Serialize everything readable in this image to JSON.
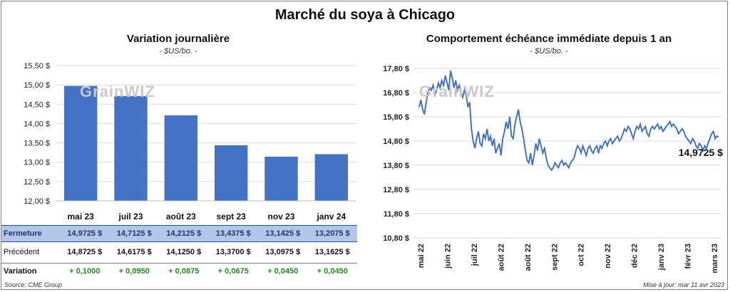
{
  "title": "Marché du soya à Chicago",
  "left_chart": {
    "title": "Variation journalière",
    "unit": "- $US/bo. -",
    "watermark": "GrainWIZ"
  },
  "right_chart": {
    "title": "Comportement échéance immédiate depuis 1 an",
    "unit": "- $US/bo. -",
    "watermark": "GrainWIZ",
    "last_value_label": "14,9725 $"
  },
  "table": {
    "rows": [
      {
        "label": "Fermeture",
        "cells": [
          "14,9725 $",
          "14,7125 $",
          "14,2125 $",
          "13,4375 $",
          "13,1425 $",
          "13,2075 $"
        ]
      },
      {
        "label": "Précédent",
        "cells": [
          "14,8725 $",
          "14,6175 $",
          "14,1250 $",
          "13,3700 $",
          "13,0975 $",
          "13,1625 $"
        ]
      },
      {
        "label": "Variation",
        "cells": [
          "+ 0,1000",
          "+ 0,0950",
          "+ 0,0875",
          "+ 0,0675",
          "+ 0,0450",
          "+ 0,0450"
        ]
      }
    ]
  },
  "footer": {
    "source": "Source: CME Group",
    "updated": "Mise à jour: mar 11 avr 2023"
  },
  "colors": {
    "bar": "#4472c4",
    "line": "#4472c4",
    "close_row_bg": "#b4c6e7",
    "variation_text": "#1e8c1e"
  },
  "chart_data": [
    {
      "type": "bar",
      "title": "Variation journalière",
      "categories": [
        "mai 23",
        "juil 23",
        "août 23",
        "sept 23",
        "nov 23",
        "janv 24"
      ],
      "values": [
        14.9725,
        14.7125,
        14.2125,
        13.4375,
        13.1425,
        13.2075
      ],
      "ylim": [
        12.0,
        15.5
      ],
      "yticks": [
        "12,00 $",
        "12,50 $",
        "13,00 $",
        "13,50 $",
        "14,00 $",
        "14,50 $",
        "15,00 $",
        "15,50 $"
      ],
      "ytick_values": [
        12.0,
        12.5,
        13.0,
        13.5,
        14.0,
        14.5,
        15.0,
        15.5
      ],
      "grid": "horizontal"
    },
    {
      "type": "line",
      "title": "Comportement échéance immédiate depuis 1 an",
      "ylim": [
        10.8,
        17.8
      ],
      "ytick_values": [
        10.8,
        11.8,
        12.8,
        13.8,
        14.8,
        15.8,
        16.8,
        17.8
      ],
      "yticks": [
        "10,80 $",
        "11,80 $",
        "12,80 $",
        "13,80 $",
        "14,80 $",
        "15,80 $",
        "16,80 $",
        "17,80 $"
      ],
      "xticks": [
        "mai 22",
        "juin 22",
        "juil 22",
        "août 22",
        "août 22",
        "sept 22",
        "oct 22",
        "nov 22",
        "déc 22",
        "janv 23",
        "févr 23",
        "mars 23"
      ],
      "grid": "horizontal",
      "series": [
        {
          "values": [
            16.2,
            16.5,
            16.1,
            15.9,
            16.4,
            16.8,
            17.0,
            16.9,
            17.1,
            16.7,
            16.9,
            17.2,
            17.0,
            17.3,
            17.1,
            17.5,
            17.2,
            16.9,
            17.7,
            17.4,
            17.0,
            17.3,
            16.9,
            17.1,
            16.8,
            16.6,
            16.9,
            16.7,
            16.2,
            16.4,
            15.3,
            14.8,
            14.5,
            14.9,
            15.2,
            14.7,
            14.6,
            15.1,
            14.9,
            15.3,
            14.8,
            15.0,
            14.6,
            14.9,
            14.3,
            14.5,
            14.7,
            14.2,
            14.9,
            15.2,
            15.6,
            15.3,
            15.8,
            15.0,
            14.9,
            15.5,
            15.8,
            16.1,
            15.6,
            15.3,
            14.9,
            14.4,
            14.0,
            13.9,
            14.3,
            13.8,
            14.2,
            14.7,
            14.4,
            14.9,
            14.6,
            14.3,
            14.5,
            14.1,
            13.8,
            13.7,
            13.6,
            13.7,
            13.9,
            13.8,
            13.7,
            13.9,
            14.0,
            13.8,
            13.9,
            13.8,
            13.7,
            13.9,
            14.0,
            14.1,
            14.4,
            14.6,
            14.5,
            14.3,
            14.6,
            14.4,
            14.2,
            14.5,
            14.6,
            14.4,
            14.3,
            14.5,
            14.6,
            14.3,
            14.6,
            14.5,
            14.7,
            14.8,
            14.6,
            14.8,
            14.9,
            14.7,
            14.8,
            14.9,
            15.0,
            14.8,
            14.9,
            15.1,
            15.3,
            15.2,
            15.4,
            15.3,
            15.1,
            14.9,
            15.2,
            15.4,
            15.3,
            15.5,
            15.2,
            15.3,
            15.4,
            15.1,
            15.0,
            15.3,
            15.4,
            15.3,
            15.4,
            15.5,
            15.3,
            15.4,
            15.2,
            15.3,
            15.4,
            15.5,
            15.6,
            15.4,
            15.5,
            15.4,
            15.3,
            15.1,
            15.2,
            15.3,
            15.2,
            15.0,
            14.9,
            14.8,
            14.7,
            14.9,
            14.8,
            14.6,
            14.5,
            14.7,
            14.6,
            14.4,
            14.6,
            14.5,
            14.7,
            14.9,
            15.1,
            15.2,
            14.9,
            15.0,
            14.97
          ]
        }
      ],
      "last_value": 14.9725
    }
  ]
}
